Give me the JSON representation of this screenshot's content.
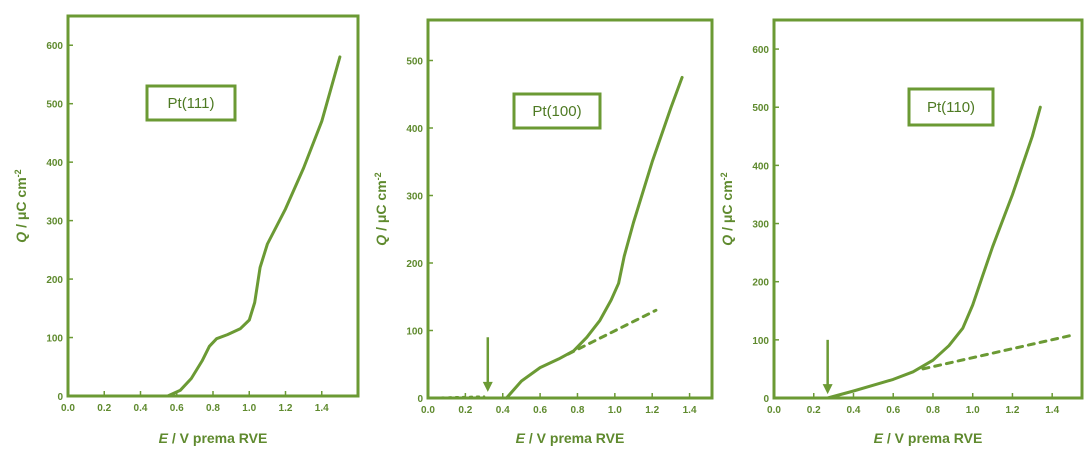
{
  "colors": {
    "accent": "#6b9a34",
    "text": "#5f8a2e",
    "background": "#ffffff"
  },
  "chart_data": [
    {
      "type": "line",
      "label": "Pt(111)",
      "xlabel": {
        "var": "E",
        "rest": " / V prema RVE"
      },
      "ylabel": {
        "var": "Q",
        "rest": " / μC cm",
        "sup": "-2"
      },
      "xlim": [
        0.0,
        1.6
      ],
      "ylim": [
        0,
        650
      ],
      "xticks": [
        "0.0",
        "0.2",
        "0.4",
        "0.6",
        "0.8",
        "1.0",
        "1.2",
        "1.4"
      ],
      "yticks": [
        "0",
        "100",
        "200",
        "300",
        "400",
        "500",
        "600"
      ],
      "grid": false,
      "series": [
        {
          "style": "solid",
          "x": [
            0.0,
            0.3,
            0.55,
            0.62,
            0.68,
            0.74,
            0.78,
            0.82,
            0.88,
            0.95,
            1.0,
            1.03,
            1.06,
            1.1,
            1.2,
            1.3,
            1.4,
            1.5
          ],
          "y": [
            0,
            0,
            0,
            10,
            30,
            60,
            85,
            98,
            105,
            115,
            130,
            160,
            220,
            260,
            320,
            390,
            470,
            580
          ]
        }
      ],
      "annotations": []
    },
    {
      "type": "line",
      "label": "Pt(100)",
      "xlabel": {
        "var": "E",
        "rest": " / V prema RVE"
      },
      "ylabel": {
        "var": "Q",
        "rest": " / μC cm",
        "sup": "-2"
      },
      "xlim": [
        0.0,
        1.52
      ],
      "ylim": [
        0,
        560
      ],
      "xticks": [
        "0.0",
        "0.2",
        "0.4",
        "0.6",
        "0.8",
        "1.0",
        "1.2",
        "1.4"
      ],
      "yticks": [
        "0",
        "100",
        "200",
        "300",
        "400",
        "500"
      ],
      "grid": false,
      "series": [
        {
          "style": "solid",
          "x": [
            0.42,
            0.5,
            0.6,
            0.7,
            0.78,
            0.85,
            0.92,
            0.98,
            1.02,
            1.05,
            1.1,
            1.2,
            1.3,
            1.36
          ],
          "y": [
            0,
            25,
            45,
            58,
            70,
            90,
            115,
            145,
            170,
            210,
            260,
            350,
            430,
            475
          ]
        },
        {
          "style": "dotted",
          "x": [
            0.0,
            0.3
          ],
          "y": [
            0,
            2
          ]
        },
        {
          "style": "dashed",
          "x": [
            0.75,
            1.22
          ],
          "y": [
            65,
            130
          ]
        }
      ],
      "annotations": [
        {
          "type": "arrow",
          "x": 0.32,
          "y_from": 90,
          "y_to": 12
        }
      ]
    },
    {
      "type": "line",
      "label": "Pt(110)",
      "xlabel": {
        "var": "E",
        "rest": " / V prema RVE"
      },
      "ylabel": {
        "var": "Q",
        "rest": " / μC cm",
        "sup": "-2"
      },
      "xlim": [
        0.0,
        1.55
      ],
      "ylim": [
        0,
        650
      ],
      "xticks": [
        "0.0",
        "0.2",
        "0.4",
        "0.6",
        "0.8",
        "1.0",
        "1.2",
        "1.4"
      ],
      "yticks": [
        "0",
        "100",
        "200",
        "300",
        "400",
        "500",
        "600"
      ],
      "grid": false,
      "series": [
        {
          "style": "solid",
          "x": [
            0.27,
            0.4,
            0.5,
            0.6,
            0.7,
            0.8,
            0.88,
            0.95,
            1.0,
            1.05,
            1.1,
            1.2,
            1.3,
            1.34
          ],
          "y": [
            0,
            12,
            22,
            32,
            45,
            65,
            90,
            120,
            160,
            210,
            260,
            350,
            450,
            500
          ]
        },
        {
          "style": "dashed",
          "x": [
            0.75,
            1.5
          ],
          "y": [
            50,
            108
          ]
        }
      ],
      "annotations": [
        {
          "type": "arrow",
          "x": 0.27,
          "y_from": 100,
          "y_to": 10
        }
      ]
    }
  ]
}
